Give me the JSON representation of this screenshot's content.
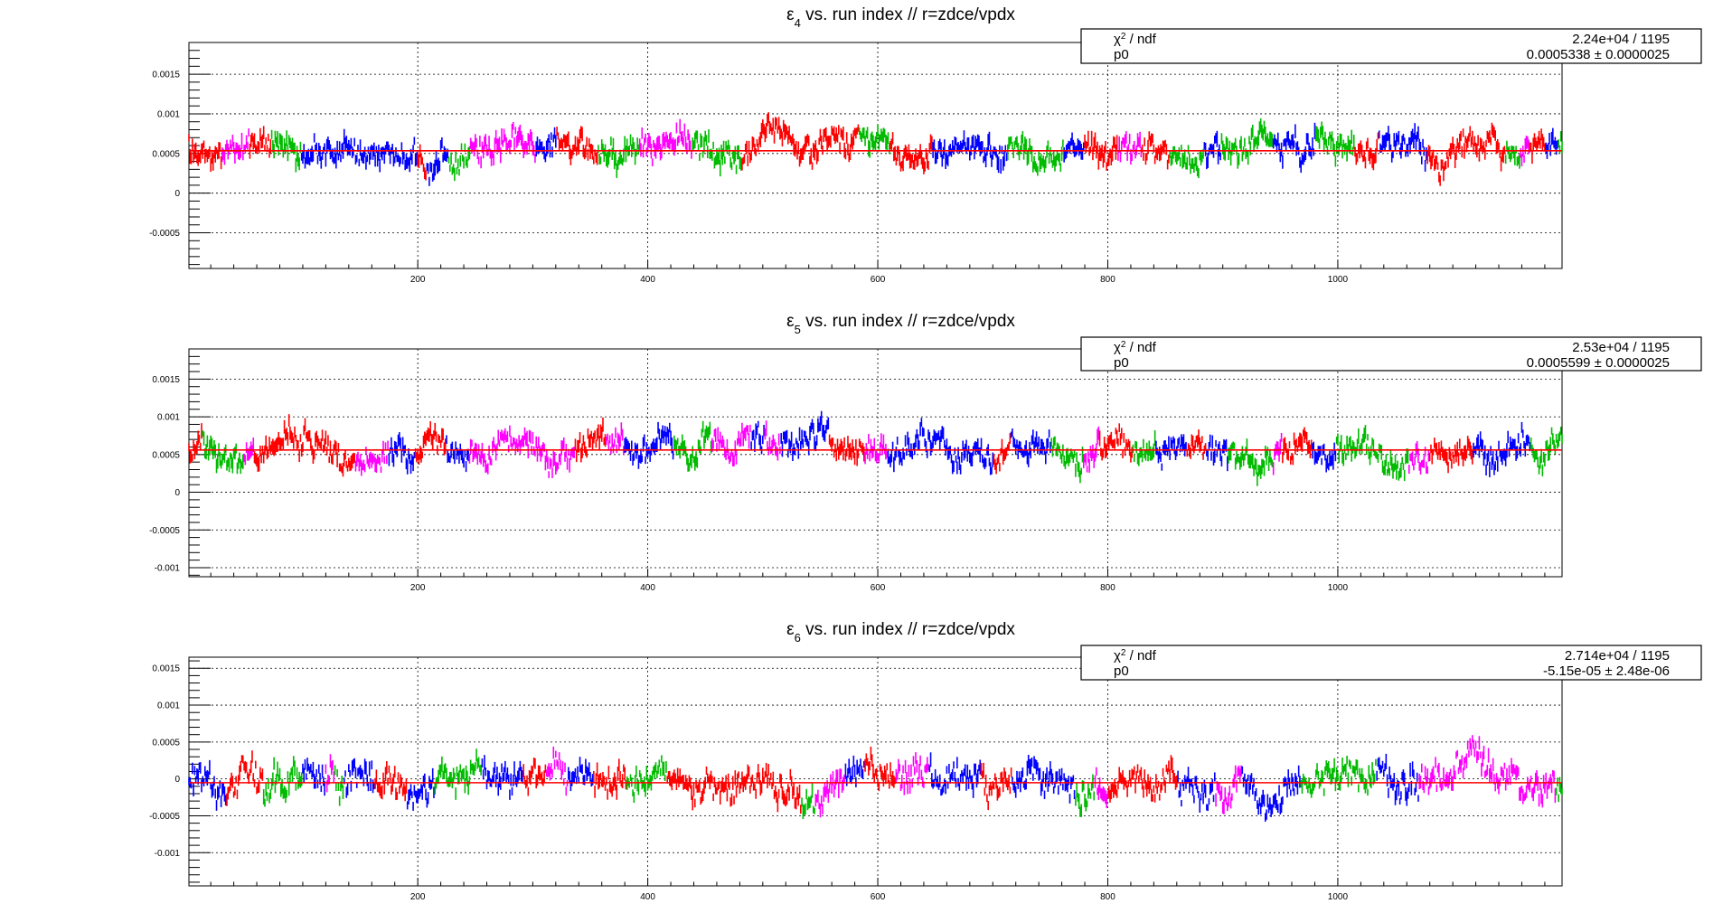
{
  "colors": {
    "fit_line": "#ff0000",
    "run_colors": [
      "#ff0000",
      "#00bb00",
      "#0000ff",
      "#ff00ff"
    ]
  },
  "chart_data": [
    {
      "type": "scatter",
      "title_symbol": "ε",
      "title_sub": "4",
      "title_rest": " vs. run index // r=zdce/vpdx",
      "xlim": [
        1,
        1195
      ],
      "ylim": [
        -0.00095,
        0.0019
      ],
      "grid": true,
      "x_ticks": [
        200,
        400,
        600,
        800,
        1000
      ],
      "y_ticks": [
        -0.0005,
        0,
        0.0005,
        0.001,
        0.0015
      ],
      "y_tick_labels": [
        "-0.0005",
        "0",
        "0.0005",
        "0.001",
        "0.0015"
      ],
      "fit_value": 0.0005338,
      "stats": {
        "label1": "χ",
        "label1_sup": "2",
        "label1_rest": " / ndf",
        "value1": "2.24e+04 / 1195",
        "label2": "p0",
        "value2": "0.0005338 ± 0.0000025"
      },
      "series": {
        "mean": 0.00054,
        "spread": 0.00025,
        "err": 7e-05,
        "points": 1195
      }
    },
    {
      "type": "scatter",
      "title_symbol": "ε",
      "title_sub": "5",
      "title_rest": " vs. run index // r=zdce/vpdx",
      "xlim": [
        1,
        1195
      ],
      "ylim": [
        -0.00112,
        0.0019
      ],
      "grid": true,
      "x_ticks": [
        200,
        400,
        600,
        800,
        1000
      ],
      "y_ticks": [
        -0.001,
        -0.0005,
        0,
        0.0005,
        0.001,
        0.0015
      ],
      "y_tick_labels": [
        "-0.001",
        "-0.0005",
        "0",
        "0.0005",
        "0.001",
        "0.0015"
      ],
      "fit_value": 0.0005599,
      "stats": {
        "label1": "χ",
        "label1_sup": "2",
        "label1_rest": " / ndf",
        "value1": "2.53e+04 / 1195",
        "label2": "p0",
        "value2": "0.0005599 ± 0.0000025"
      },
      "series": {
        "mean": 0.00056,
        "spread": 0.00027,
        "err": 7e-05,
        "points": 1195
      }
    },
    {
      "type": "scatter",
      "title_symbol": "ε",
      "title_sub": "6",
      "title_rest": " vs. run index // r=zdce/vpdx",
      "xlim": [
        1,
        1195
      ],
      "ylim": [
        -0.00145,
        0.00165
      ],
      "grid": true,
      "x_ticks": [
        200,
        400,
        600,
        800,
        1000
      ],
      "y_ticks": [
        -0.001,
        -0.0005,
        0,
        0.0005,
        0.001,
        0.0015
      ],
      "y_tick_labels": [
        "-0.001",
        "-0.0005",
        "0",
        "0.0005",
        "0.001",
        "0.0015"
      ],
      "fit_value": -5.15e-05,
      "stats": {
        "label1": "χ",
        "label1_sup": "2",
        "label1_rest": " / ndf",
        "value1": "2.714e+04 / 1195",
        "label2": "p0",
        "value2": "-5.15e-05 ± 2.48e-06"
      },
      "series": {
        "mean": -5e-05,
        "spread": 0.00032,
        "err": 7e-05,
        "points": 1195
      }
    }
  ]
}
